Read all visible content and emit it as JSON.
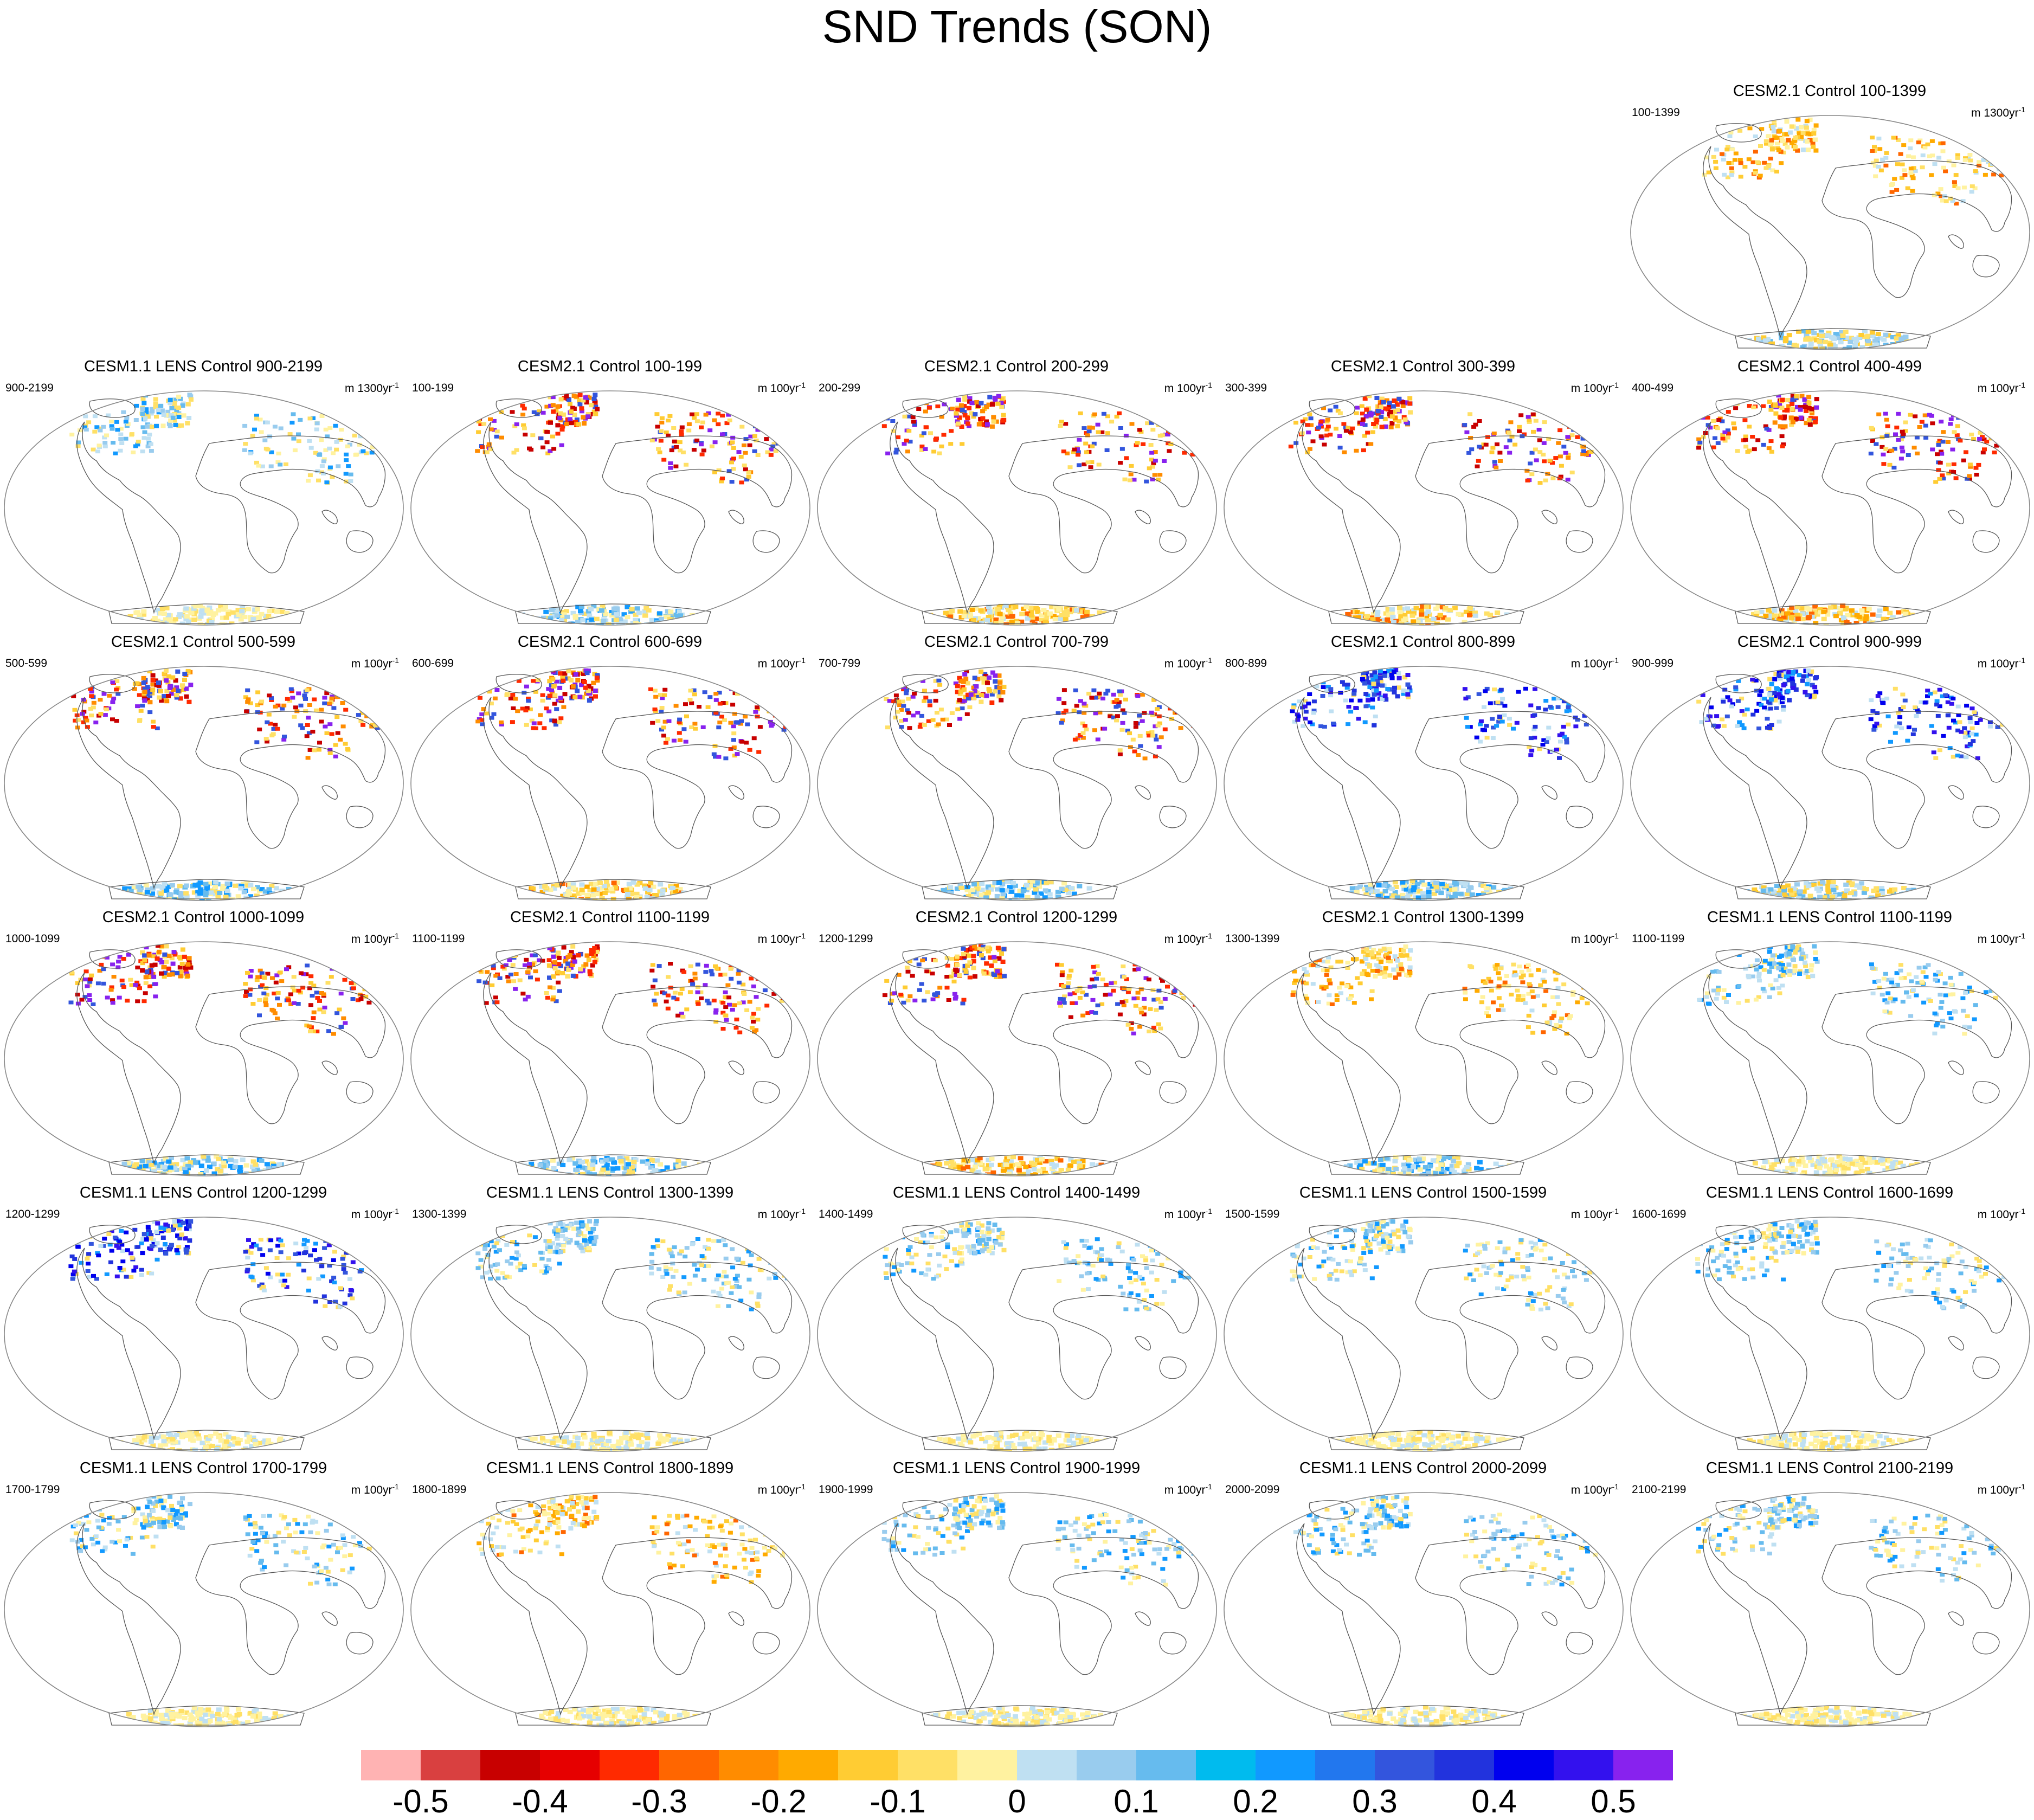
{
  "title": "SND Trends (SON)",
  "units_prefix": "m",
  "units_suffix": "yr",
  "units_exp": "-1",
  "panels": [
    {
      "title": "CESM2.1 Control 100-1399",
      "period": "100-1399",
      "span": "1300",
      "north": "warm",
      "south": "mixed"
    },
    {
      "title": "CESM1.1 LENS Control 900-2199",
      "period": "900-2199",
      "span": "1300",
      "north": "cool",
      "south": "yellow"
    },
    {
      "title": "CESM2.1 Control 100-199",
      "period": "100-199",
      "span": "100",
      "north": "hot",
      "south": "cool"
    },
    {
      "title": "CESM2.1 Control 200-299",
      "period": "200-299",
      "span": "100",
      "north": "hot",
      "south": "warm"
    },
    {
      "title": "CESM2.1 Control 300-399",
      "period": "300-399",
      "span": "100",
      "north": "hot",
      "south": "warm"
    },
    {
      "title": "CESM2.1 Control 400-499",
      "period": "400-499",
      "span": "100",
      "north": "hot",
      "south": "warm"
    },
    {
      "title": "CESM2.1 Control 500-599",
      "period": "500-599",
      "span": "100",
      "north": "hot",
      "south": "cool"
    },
    {
      "title": "CESM2.1 Control 600-699",
      "period": "600-699",
      "span": "100",
      "north": "hot",
      "south": "warm"
    },
    {
      "title": "CESM2.1 Control 700-799",
      "period": "700-799",
      "span": "100",
      "north": "hot",
      "south": "cool"
    },
    {
      "title": "CESM2.1 Control 800-899",
      "period": "800-899",
      "span": "100",
      "north": "blue",
      "south": "cool"
    },
    {
      "title": "CESM2.1 Control 900-999",
      "period": "900-999",
      "span": "100",
      "north": "blue",
      "south": "mixed"
    },
    {
      "title": "CESM2.1 Control 1000-1099",
      "period": "1000-1099",
      "span": "100",
      "north": "hot",
      "south": "cool"
    },
    {
      "title": "CESM2.1 Control 1100-1199",
      "period": "1100-1199",
      "span": "100",
      "north": "hot",
      "south": "cool"
    },
    {
      "title": "CESM2.1 Control 1200-1299",
      "period": "1200-1299",
      "span": "100",
      "north": "hot",
      "south": "warm"
    },
    {
      "title": "CESM2.1 Control 1300-1399",
      "period": "1300-1399",
      "span": "100",
      "north": "warm",
      "south": "cool"
    },
    {
      "title": "CESM1.1 LENS Control 1100-1199",
      "period": "1100-1199",
      "span": "100",
      "north": "cool",
      "south": "yellow"
    },
    {
      "title": "CESM1.1 LENS Control 1200-1299",
      "period": "1200-1299",
      "span": "100",
      "north": "blue",
      "south": "yellow"
    },
    {
      "title": "CESM1.1 LENS Control 1300-1399",
      "period": "1300-1399",
      "span": "100",
      "north": "cool",
      "south": "yellow"
    },
    {
      "title": "CESM1.1 LENS Control 1400-1499",
      "period": "1400-1499",
      "span": "100",
      "north": "cool",
      "south": "yellow"
    },
    {
      "title": "CESM1.1 LENS Control 1500-1599",
      "period": "1500-1599",
      "span": "100",
      "north": "cool",
      "south": "yellow"
    },
    {
      "title": "CESM1.1 LENS Control 1600-1699",
      "period": "1600-1699",
      "span": "100",
      "north": "cool",
      "south": "yellow"
    },
    {
      "title": "CESM1.1 LENS Control 1700-1799",
      "period": "1700-1799",
      "span": "100",
      "north": "cool",
      "south": "yellow"
    },
    {
      "title": "CESM1.1 LENS Control 1800-1899",
      "period": "1800-1899",
      "span": "100",
      "north": "warm",
      "south": "yellow"
    },
    {
      "title": "CESM1.1 LENS Control 1900-1999",
      "period": "1900-1999",
      "span": "100",
      "north": "cool",
      "south": "yellow"
    },
    {
      "title": "CESM1.1 LENS Control 2000-2099",
      "period": "2000-2099",
      "span": "100",
      "north": "cool",
      "south": "yellow"
    },
    {
      "title": "CESM1.1 LENS Control 2100-2199",
      "period": "2100-2199",
      "span": "100",
      "north": "cool",
      "south": "yellow"
    }
  ],
  "colorbar": {
    "colors": [
      "#ffb3b3",
      "#d94040",
      "#c80000",
      "#e60000",
      "#ff2a00",
      "#ff6600",
      "#ff8c00",
      "#ffaa00",
      "#ffcc33",
      "#ffe066",
      "#fff2a0",
      "#bfe0f2",
      "#99ccee",
      "#66bbee",
      "#00bbee",
      "#1199ff",
      "#2277ee",
      "#3355dd",
      "#2233dd",
      "#0000ee",
      "#3311ee",
      "#8822ee"
    ],
    "labels": [
      "-0.5",
      "-0.4",
      "-0.3",
      "-0.2",
      "-0.1",
      "0",
      "0.1",
      "0.2",
      "0.3",
      "0.4",
      "0.5"
    ]
  },
  "palettes": {
    "hot": [
      "#ffe066",
      "#ffcc33",
      "#ff8c00",
      "#ff2a00",
      "#c80000",
      "#3355dd",
      "#8822ee"
    ],
    "warm": [
      "#fff2a0",
      "#ffe066",
      "#ffcc33",
      "#ffaa00",
      "#ff6600",
      "#bfe0f2"
    ],
    "cool": [
      "#bfe0f2",
      "#99ccee",
      "#66bbee",
      "#1199ff",
      "#fff2a0",
      "#ffe066"
    ],
    "blue": [
      "#1199ff",
      "#3355dd",
      "#2233dd",
      "#0000ee",
      "#3311ee",
      "#bfe0f2",
      "#ffe066"
    ],
    "yellow": [
      "#fff2a0",
      "#ffe066",
      "#bfe0f2",
      "#fff2a0"
    ],
    "mixed": [
      "#ffe066",
      "#bfe0f2",
      "#99ccee",
      "#ffcc33",
      "#66bbee"
    ]
  }
}
